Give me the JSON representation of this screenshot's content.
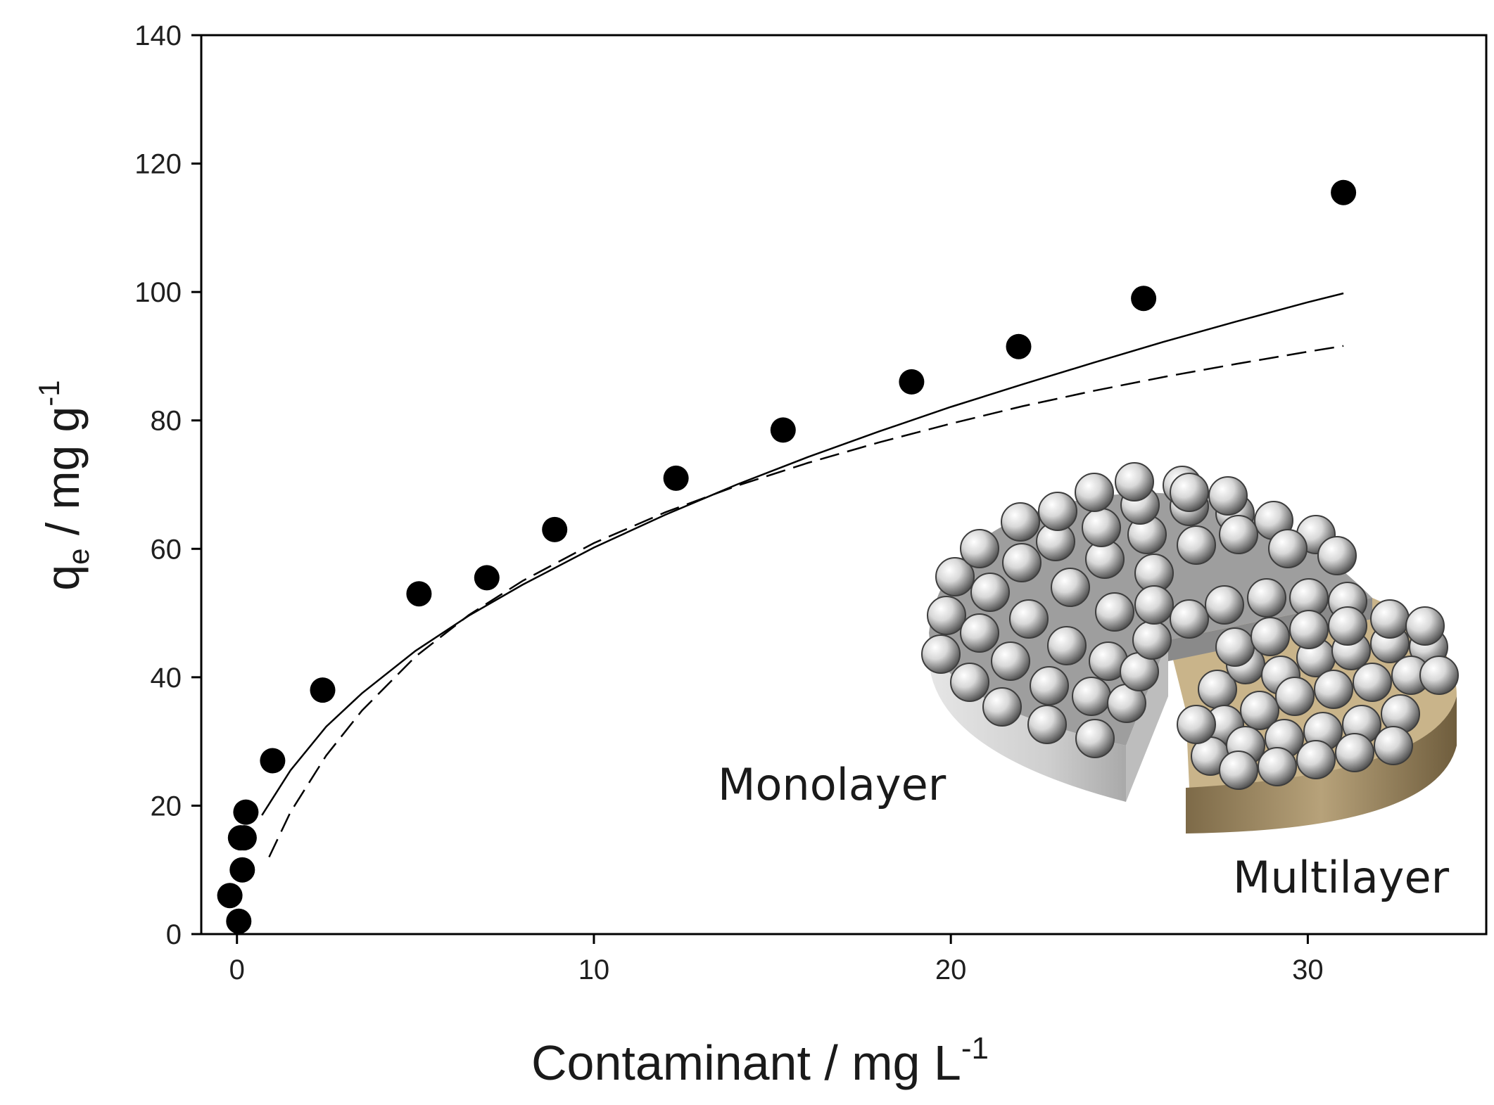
{
  "chart_data": {
    "type": "scatter",
    "xlabel": {
      "main": "Contaminant / mg L",
      "sup": "-1"
    },
    "ylabel": {
      "main": "q",
      "sub": "e",
      "rest": " / mg g",
      "sup": "-1"
    },
    "xlim": [
      -1,
      35
    ],
    "ylim": [
      0,
      140
    ],
    "xticks": [
      0,
      10,
      20,
      30
    ],
    "yticks": [
      0,
      20,
      40,
      60,
      80,
      100,
      120,
      140
    ],
    "grid": false,
    "series": [
      {
        "kind": "points",
        "marker": "filled-circle",
        "color": "#000000",
        "x": [
          -0.2,
          0.05,
          0.1,
          0.15,
          0.2,
          0.25,
          1.0,
          2.4,
          5.1,
          7.0,
          8.9,
          12.3,
          15.3,
          18.9,
          21.9,
          25.4,
          31.0
        ],
        "y": [
          6,
          2,
          15,
          10,
          15,
          19,
          27,
          38,
          53,
          55.5,
          63,
          71,
          78.5,
          86,
          91.5,
          99,
          115.5
        ]
      },
      {
        "kind": "fit",
        "line_style": "solid",
        "color": "#000000",
        "x": [
          0.7,
          1.5,
          2.5,
          3.5,
          5,
          6.5,
          8,
          10,
          12,
          14,
          16,
          18,
          20,
          22,
          24,
          26,
          28,
          30,
          31
        ],
        "y": [
          18.5,
          25.5,
          32.3,
          37.5,
          44.1,
          49.6,
          54.4,
          60.2,
          65.3,
          70,
          74.3,
          78.3,
          82.1,
          85.6,
          89,
          92.3,
          95.4,
          98.4,
          99.8
        ]
      },
      {
        "kind": "fit",
        "line_style": "dashed",
        "color": "#000000",
        "x": [
          0.9,
          1.5,
          2.5,
          3.5,
          5,
          6.5,
          8,
          10,
          12,
          14,
          16,
          18,
          20,
          22,
          24,
          26,
          28,
          30,
          31
        ],
        "y": [
          12,
          19,
          27.8,
          34.8,
          43.2,
          49.7,
          55,
          60.9,
          65.7,
          69.8,
          73.4,
          76.6,
          79.5,
          82.2,
          84.6,
          86.8,
          88.8,
          90.7,
          91.6
        ]
      }
    ]
  },
  "inset": {
    "labels": {
      "monolayer": "Monolayer",
      "multilayer": "Multilayer"
    },
    "colors": {
      "disk_top": "#9a9a9a",
      "disk_side": "#cfcfcf",
      "multilayer_side": "#a08a62",
      "sphere": "#bdbdbd"
    }
  }
}
